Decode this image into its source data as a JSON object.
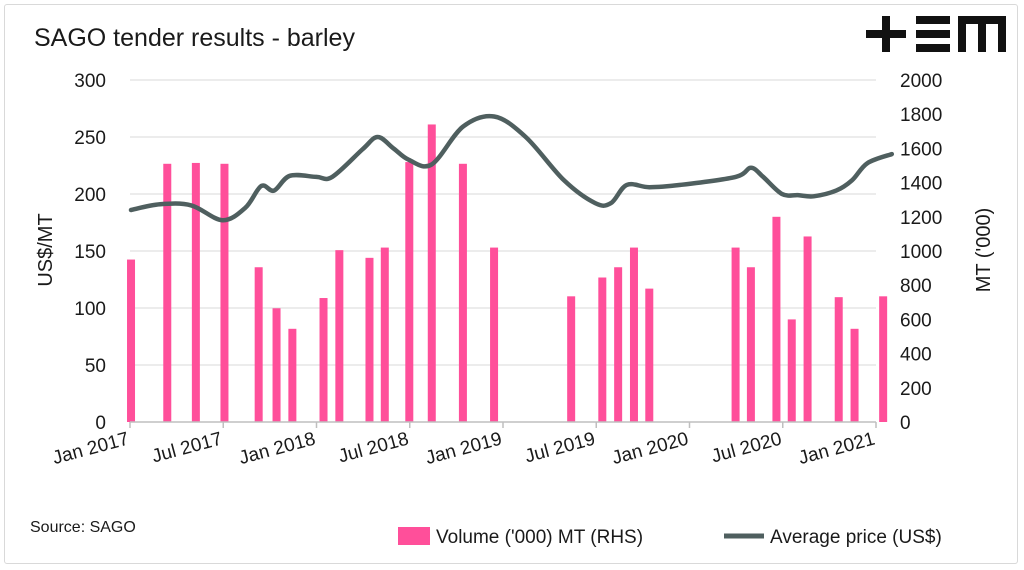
{
  "logo_text": "+EM",
  "chart_data": {
    "type": "bar+line",
    "title": "SAGO tender results - barley",
    "source": "Source: SAGO",
    "xlabels": [
      "Jan 2017",
      "Jul 2017",
      "Jan 2018",
      "Jul 2018",
      "Jan 2019",
      "Jul 2019",
      "Jan 2020",
      "Jul 2020",
      "Jan 2021"
    ],
    "x_range": [
      "2017-01-01",
      "2021-01-01"
    ],
    "y_left": {
      "label": "US$/MT",
      "ylim": [
        0,
        300
      ],
      "ticks": [
        0,
        50,
        100,
        150,
        200,
        250,
        300
      ]
    },
    "y_right": {
      "label": "MT ('000)",
      "ylim": [
        0,
        2000
      ],
      "ticks": [
        0,
        200,
        400,
        600,
        800,
        1000,
        1200,
        1400,
        1600,
        1800,
        2000
      ]
    },
    "legend": {
      "position": "bottom",
      "items": [
        "Volume ('000) MT (RHS)",
        "Average price (US$)"
      ]
    },
    "series": [
      {
        "name": "Volume ('000) MT (RHS)",
        "axis": "right",
        "kind": "bar",
        "color": "#ff4f9a",
        "points": [
          [
            "2017-01-03",
            950
          ],
          [
            "2017-03-15",
            1510
          ],
          [
            "2017-05-10",
            1515
          ],
          [
            "2017-07-05",
            1510
          ],
          [
            "2017-09-10",
            905
          ],
          [
            "2017-10-15",
            665
          ],
          [
            "2017-11-15",
            545
          ],
          [
            "2018-01-15",
            725
          ],
          [
            "2018-02-15",
            1005
          ],
          [
            "2018-04-15",
            960
          ],
          [
            "2018-05-15",
            1020
          ],
          [
            "2018-07-02",
            1520
          ],
          [
            "2018-08-15",
            1740
          ],
          [
            "2018-10-15",
            1510
          ],
          [
            "2018-12-15",
            1020
          ],
          [
            "2019-05-15",
            735
          ],
          [
            "2019-07-15",
            845
          ],
          [
            "2019-08-15",
            905
          ],
          [
            "2019-09-15",
            1020
          ],
          [
            "2019-10-15",
            780
          ],
          [
            "2020-04-01",
            1020
          ],
          [
            "2020-05-01",
            905
          ],
          [
            "2020-06-20",
            1200
          ],
          [
            "2020-07-20",
            600
          ],
          [
            "2020-08-20",
            1085
          ],
          [
            "2020-10-20",
            730
          ],
          [
            "2020-11-20",
            545
          ],
          [
            "2021-01-15",
            735
          ]
        ]
      },
      {
        "name": "Average price (US$)",
        "axis": "left",
        "kind": "line",
        "color": "#4f5f5f",
        "points": [
          [
            "2017-01-03",
            186
          ],
          [
            "2017-03-01",
            191
          ],
          [
            "2017-05-01",
            190
          ],
          [
            "2017-07-01",
            177
          ],
          [
            "2017-08-15",
            188
          ],
          [
            "2017-09-15",
            207
          ],
          [
            "2017-10-10",
            203
          ],
          [
            "2017-11-10",
            216
          ],
          [
            "2018-01-01",
            215
          ],
          [
            "2018-02-01",
            215
          ],
          [
            "2018-04-01",
            239
          ],
          [
            "2018-05-01",
            250
          ],
          [
            "2018-06-01",
            240
          ],
          [
            "2018-07-01",
            230
          ],
          [
            "2018-08-15",
            226
          ],
          [
            "2018-10-15",
            259
          ],
          [
            "2018-12-15",
            268
          ],
          [
            "2019-02-15",
            250
          ],
          [
            "2019-05-01",
            212
          ],
          [
            "2019-07-01",
            192
          ],
          [
            "2019-08-01",
            192
          ],
          [
            "2019-09-01",
            208
          ],
          [
            "2019-10-15",
            206
          ],
          [
            "2019-12-15",
            208
          ],
          [
            "2020-04-01",
            215
          ],
          [
            "2020-05-01",
            223
          ],
          [
            "2020-05-25",
            215
          ],
          [
            "2020-07-01",
            200
          ],
          [
            "2020-08-01",
            199
          ],
          [
            "2020-09-01",
            198
          ],
          [
            "2020-10-15",
            203
          ],
          [
            "2020-11-15",
            212
          ],
          [
            "2020-12-15",
            227
          ],
          [
            "2021-02-01",
            235
          ]
        ]
      }
    ]
  }
}
